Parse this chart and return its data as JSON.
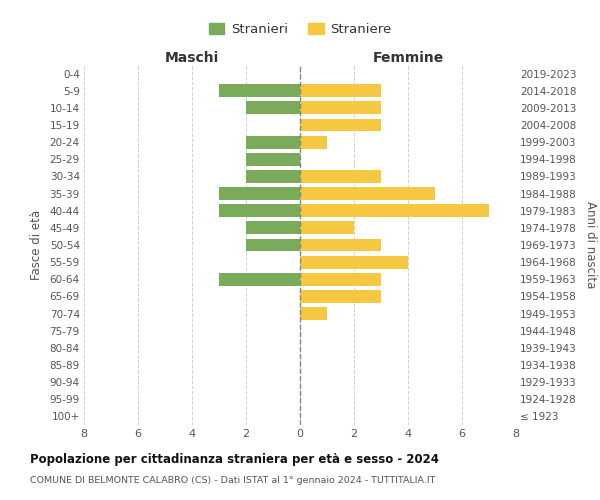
{
  "age_groups": [
    "100+",
    "95-99",
    "90-94",
    "85-89",
    "80-84",
    "75-79",
    "70-74",
    "65-69",
    "60-64",
    "55-59",
    "50-54",
    "45-49",
    "40-44",
    "35-39",
    "30-34",
    "25-29",
    "20-24",
    "15-19",
    "10-14",
    "5-9",
    "0-4"
  ],
  "birth_years": [
    "≤ 1923",
    "1924-1928",
    "1929-1933",
    "1934-1938",
    "1939-1943",
    "1944-1948",
    "1949-1953",
    "1954-1958",
    "1959-1963",
    "1964-1968",
    "1969-1973",
    "1974-1978",
    "1979-1983",
    "1984-1988",
    "1989-1993",
    "1994-1998",
    "1999-2003",
    "2004-2008",
    "2009-2013",
    "2014-2018",
    "2019-2023"
  ],
  "maschi": [
    0,
    0,
    0,
    0,
    0,
    0,
    0,
    0,
    3,
    0,
    2,
    2,
    3,
    3,
    2,
    2,
    2,
    0,
    2,
    3,
    0
  ],
  "femmine": [
    0,
    0,
    0,
    0,
    0,
    0,
    1,
    3,
    3,
    4,
    3,
    2,
    7,
    5,
    3,
    0,
    1,
    3,
    3,
    3,
    0
  ],
  "color_maschi": "#7aab5a",
  "color_femmine": "#f5c842",
  "title": "Popolazione per cittadinanza straniera per età e sesso - 2024",
  "subtitle": "COMUNE DI BELMONTE CALABRO (CS) - Dati ISTAT al 1° gennaio 2024 - TUTTITALIA.IT",
  "xlabel_left": "Maschi",
  "xlabel_right": "Femmine",
  "ylabel_left": "Fasce di età",
  "ylabel_right": "Anni di nascita",
  "legend_maschi": "Stranieri",
  "legend_femmine": "Straniere",
  "xlim": 8,
  "background_color": "#ffffff",
  "grid_color": "#d0d0d0"
}
